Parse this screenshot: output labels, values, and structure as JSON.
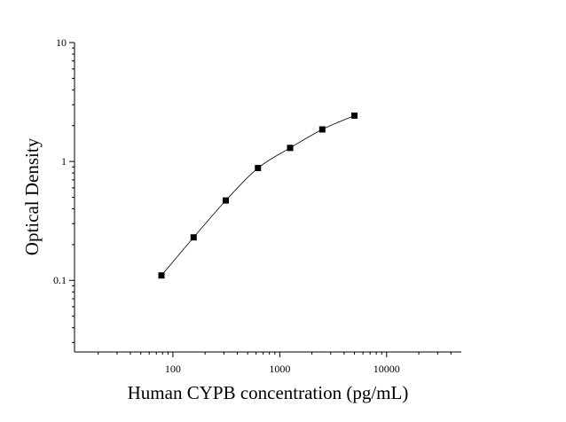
{
  "chart_data": {
    "type": "scatter",
    "title": "",
    "xlabel": "Human CYPB concentration (pg/mL)",
    "ylabel": "Optical Density",
    "x_scale": "log",
    "y_scale": "log",
    "xlim": [
      12,
      50000
    ],
    "ylim": [
      0.025,
      10
    ],
    "x_ticks": [
      {
        "value": 100,
        "label": "100"
      },
      {
        "value": 1000,
        "label": "1000"
      },
      {
        "value": 10000,
        "label": "10000"
      }
    ],
    "y_ticks": [
      {
        "value": 0.1,
        "label": "0.1"
      },
      {
        "value": 1,
        "label": "1"
      },
      {
        "value": 10,
        "label": "10"
      }
    ],
    "grid": false,
    "legend": "none",
    "series": [
      {
        "x": [
          78.125,
          156.25,
          312.5,
          625,
          1250,
          2500,
          5000
        ],
        "y": [
          0.11,
          0.23,
          0.47,
          0.88,
          1.3,
          1.86,
          2.43
        ],
        "marker": "square",
        "fit_curve": true
      }
    ],
    "colors": {
      "marks": "#000000",
      "axes": "#000000"
    }
  }
}
